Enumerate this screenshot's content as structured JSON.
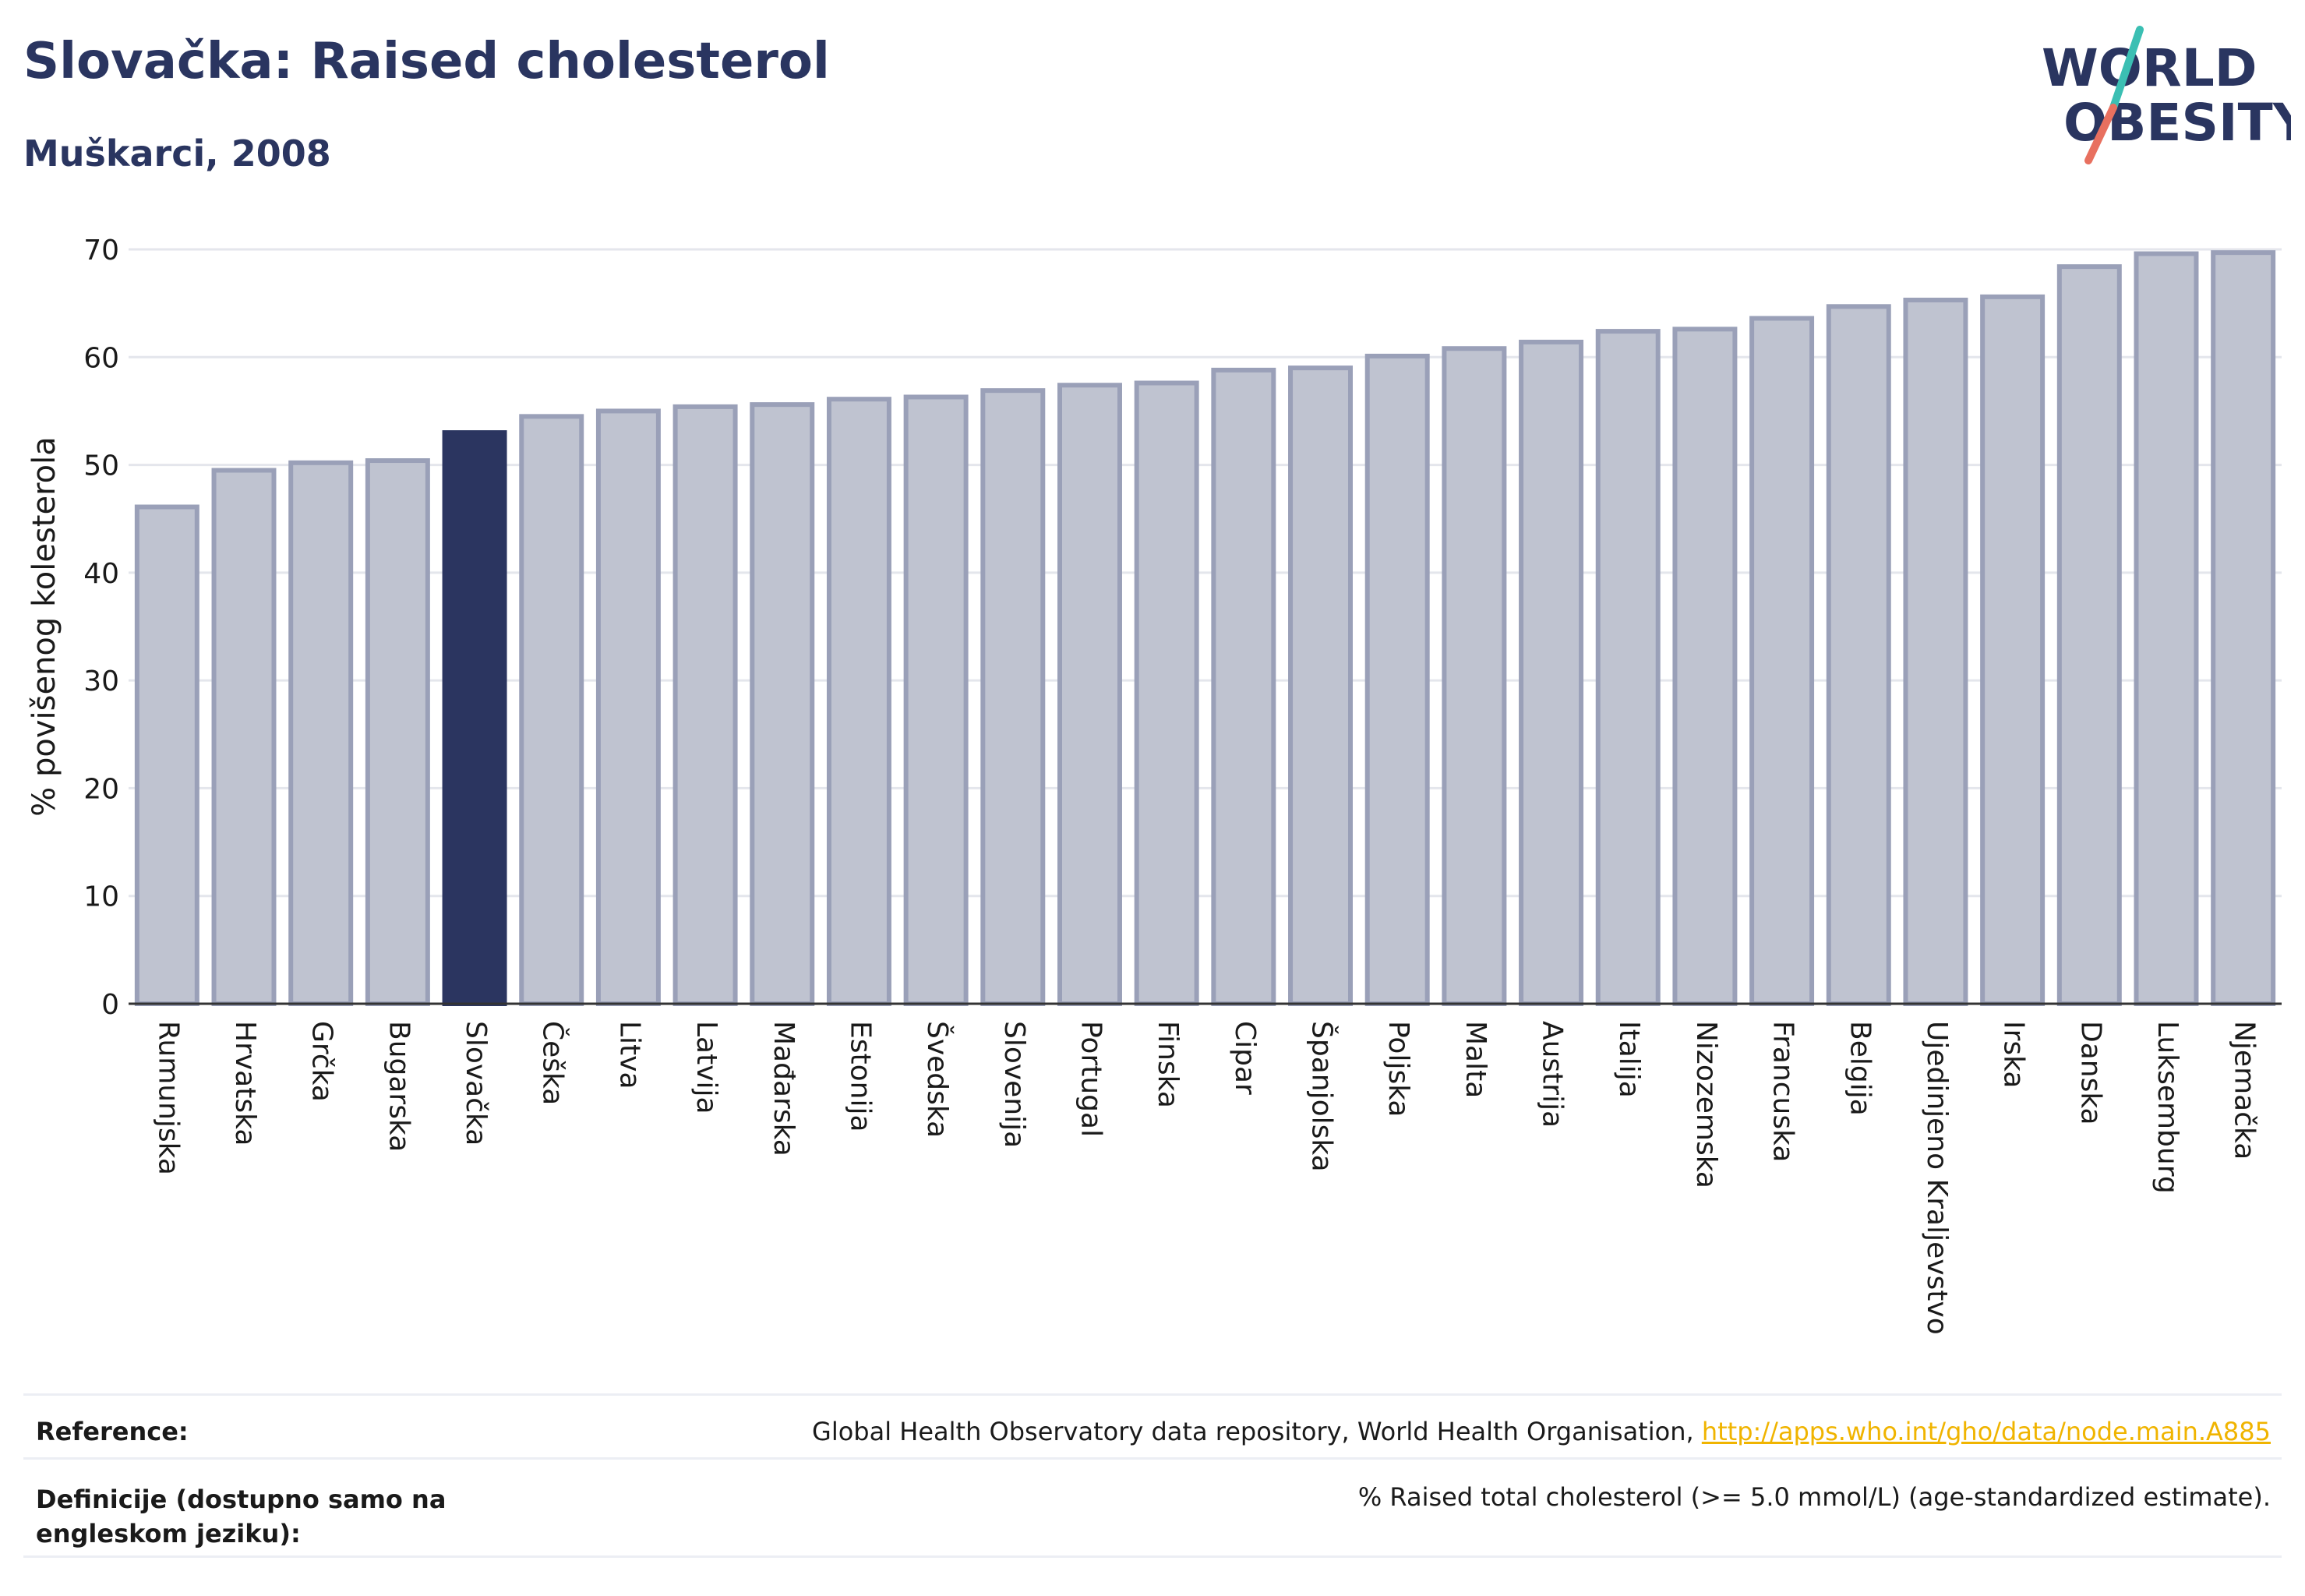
{
  "header": {
    "title": "Slovačka: Raised cholesterol",
    "subtitle": "Muškarci, 2008"
  },
  "logo": {
    "line1": "WORLD",
    "line2": "OBESITY",
    "slash_color_top": "#3bbfb3",
    "slash_color_bottom": "#e8705f"
  },
  "colors": {
    "bar": "#bfc3d0",
    "bar_border": "#9aa0b8",
    "highlight": "#2b3560",
    "grid": "#e4e6ec",
    "axis": "#333333",
    "text": "#1a1a1a"
  },
  "chart_data": {
    "type": "bar",
    "title": "Slovačka: Raised cholesterol",
    "subtitle": "Muškarci, 2008",
    "ylabel": "% povišenog kolesterola",
    "xlabel": "",
    "ylim": [
      0,
      70
    ],
    "yticks": [
      0,
      10,
      20,
      30,
      40,
      50,
      60,
      70
    ],
    "grid": true,
    "highlight": "Slovačka",
    "categories": [
      "Rumunjska",
      "Hrvatska",
      "Grčka",
      "Bugarska",
      "Slovačka",
      "Češka",
      "Litva",
      "Latvija",
      "Mađarska",
      "Estonija",
      "Švedska",
      "Slovenija",
      "Portugal",
      "Finska",
      "Cipar",
      "Španjolska",
      "Poljska",
      "Malta",
      "Austrija",
      "Italija",
      "Nizozemska",
      "Francuska",
      "Belgija",
      "Ujedinjeno Kraljevstvo",
      "Irska",
      "Danska",
      "Luksemburg",
      "Njemačka"
    ],
    "values": [
      46.1,
      49.5,
      50.2,
      50.4,
      53.0,
      54.5,
      55.0,
      55.4,
      55.6,
      56.1,
      56.3,
      56.9,
      57.4,
      57.6,
      58.8,
      59.0,
      60.1,
      60.8,
      61.4,
      62.4,
      62.6,
      63.6,
      64.7,
      65.3,
      65.6,
      68.4,
      69.6,
      69.7
    ]
  },
  "footer": {
    "reference_label": "Reference:",
    "reference_text": "Global Health Observatory data repository, World Health Organisation, ",
    "reference_link": "http://apps.who.int/gho/data/node.main.A885",
    "definition_label": "Definicije (dostupno samo na engleskom jeziku):",
    "definition_text": "% Raised total cholesterol (>= 5.0 mmol/L) (age-standardized estimate)."
  }
}
